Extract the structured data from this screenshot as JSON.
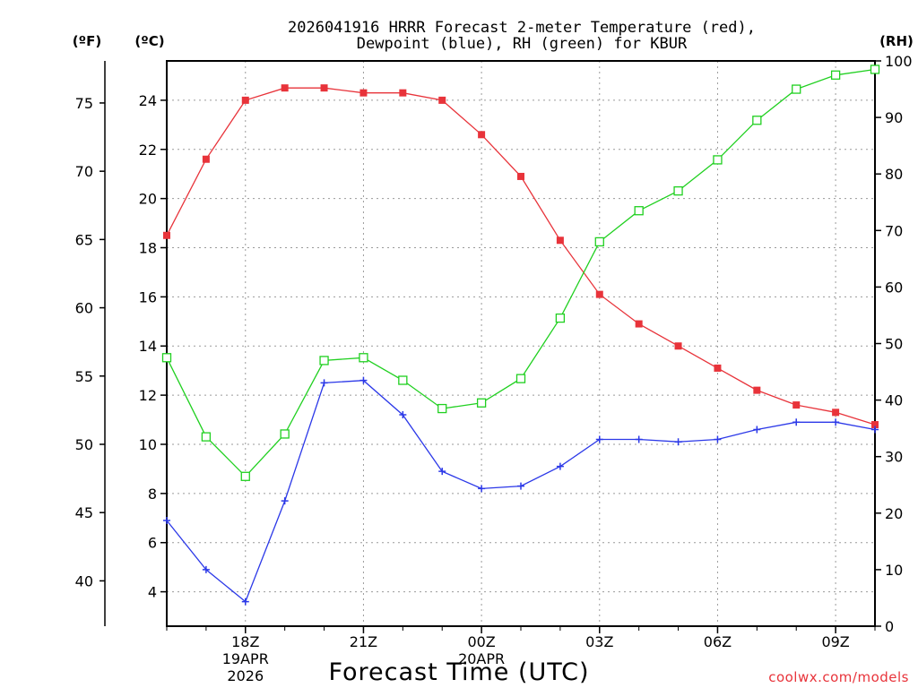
{
  "chart_data": {
    "type": "line",
    "title_line1": "2026041916 HRRR Forecast 2-meter Temperature (red),",
    "title_line2": "Dewpoint (blue), RH (green) for KBUR",
    "xlabel": "Forecast Time (UTC)",
    "credit": "coolwx.com/models",
    "unit_f": "(ºF)",
    "unit_c": "(ºC)",
    "unit_rh": "(RH)",
    "grid": true,
    "x_range": [
      16,
      34
    ],
    "x_hours": [
      16,
      17,
      18,
      19,
      20,
      21,
      22,
      23,
      24,
      25,
      26,
      27,
      28,
      29,
      30,
      31,
      32,
      33,
      34
    ],
    "x_ticks": [
      {
        "hour": 18,
        "label": "18Z",
        "date": "19APR",
        "year": "2026"
      },
      {
        "hour": 21,
        "label": "21Z"
      },
      {
        "hour": 24,
        "label": "00Z",
        "date": "20APR"
      },
      {
        "hour": 27,
        "label": "03Z"
      },
      {
        "hour": 30,
        "label": "06Z"
      },
      {
        "hour": 33,
        "label": "09Z"
      }
    ],
    "celsius_axis": {
      "range": [
        2.6,
        25.6
      ],
      "ticks": [
        4,
        6,
        8,
        10,
        12,
        14,
        16,
        18,
        20,
        22,
        24
      ]
    },
    "fahrenheit_axis": {
      "ticks": [
        40,
        45,
        50,
        55,
        60,
        65,
        70,
        75
      ]
    },
    "rh_axis": {
      "range": [
        0,
        100
      ],
      "ticks": [
        0,
        10,
        20,
        30,
        40,
        50,
        60,
        70,
        80,
        90,
        100
      ]
    },
    "series": [
      {
        "name": "Temperature",
        "color": "#e8333a",
        "marker": "filled-square",
        "axis": "celsius",
        "values": [
          18.5,
          21.6,
          24.0,
          24.5,
          24.5,
          24.3,
          24.3,
          24.0,
          22.6,
          20.9,
          18.3,
          16.1,
          14.9,
          14.0,
          13.1,
          12.2,
          11.6,
          11.3,
          10.8
        ]
      },
      {
        "name": "Dewpoint",
        "color": "#2b38e8",
        "marker": "plus",
        "axis": "celsius",
        "values": [
          6.9,
          4.9,
          3.6,
          7.7,
          12.5,
          12.6,
          11.2,
          8.9,
          8.2,
          8.3,
          9.1,
          10.2,
          10.2,
          10.1,
          10.2,
          10.6,
          10.9,
          10.9,
          10.6
        ]
      },
      {
        "name": "RH",
        "color": "#20d020",
        "marker": "open-square",
        "axis": "rh",
        "values": [
          47.5,
          33.5,
          26.5,
          34,
          47,
          47.5,
          43.5,
          38.5,
          39.5,
          43.8,
          54.5,
          68,
          73.5,
          77,
          82.5,
          89.5,
          95,
          97.5,
          98.5
        ]
      }
    ]
  }
}
